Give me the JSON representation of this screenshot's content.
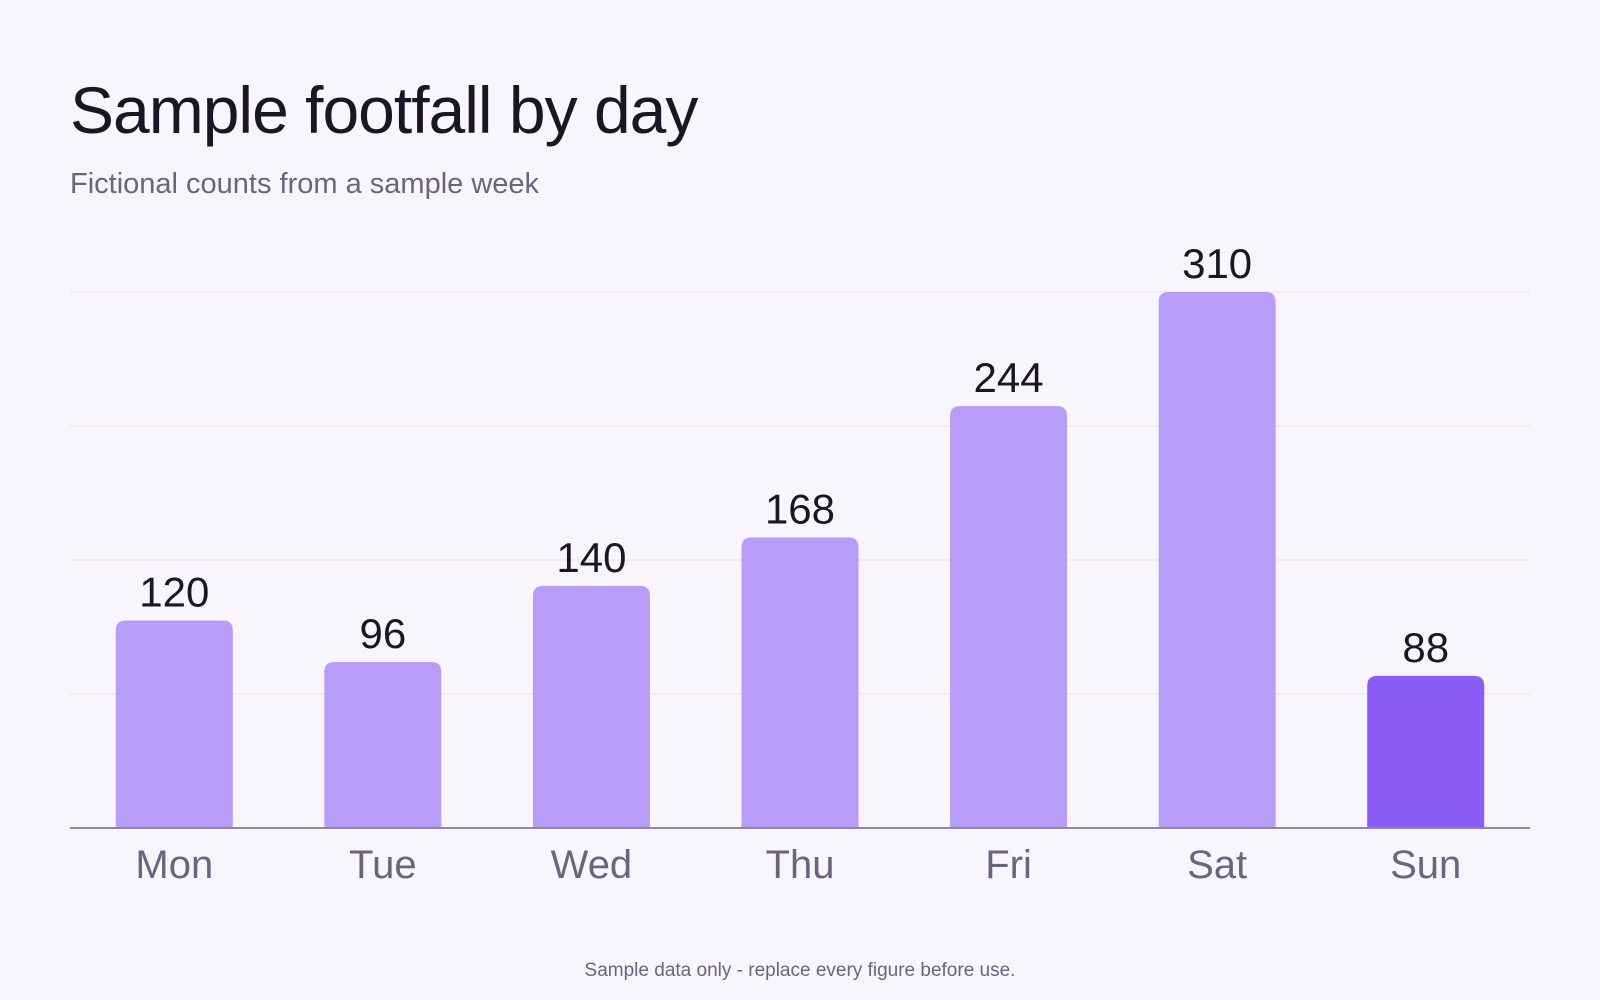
{
  "header": {
    "title": "Sample footfall by day",
    "subtitle": "Fictional counts from a sample week"
  },
  "footer": {
    "note": "Sample data only - replace every figure before use."
  },
  "colors": {
    "bar": "#b89df8",
    "highlight_bar": "#8b5cf6",
    "grid": "#e6e0ee",
    "axis": "#8e8a99",
    "background": "#f9f5fd"
  },
  "chart_data": {
    "type": "bar",
    "title": "Sample footfall by day",
    "subtitle": "Fictional counts from a sample week",
    "categories": [
      "Mon",
      "Tue",
      "Wed",
      "Thu",
      "Fri",
      "Sat",
      "Sun"
    ],
    "values": [
      120,
      96,
      140,
      168,
      244,
      310,
      88
    ],
    "highlight": "Sun",
    "ylim": [
      0,
      310
    ],
    "grid": true,
    "data_labels": true,
    "xlabel": "",
    "ylabel": ""
  }
}
